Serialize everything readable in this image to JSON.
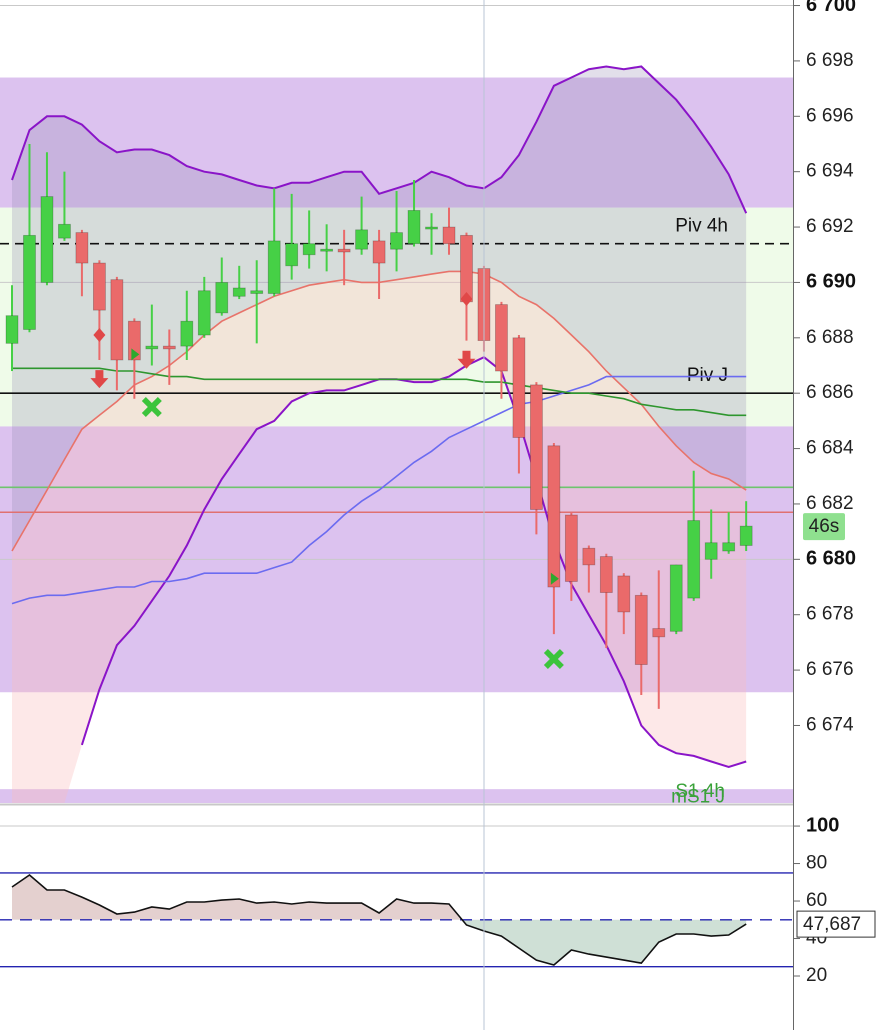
{
  "chart_data": [
    {
      "type": "candlestick",
      "open": [
        6687.8,
        6688.3,
        6690.0,
        6691.6,
        6691.8,
        6690.7,
        6690.1,
        6688.6,
        6687.6,
        6687.7,
        6687.7,
        6688.1,
        6688.9,
        6689.5,
        6689.6,
        6689.6,
        6690.6,
        6691.0,
        6691.2,
        6691.2,
        6691.2,
        6691.5,
        6691.2,
        6691.4,
        6692.0,
        6692.0,
        6691.7,
        6690.5,
        6689.2,
        6688.0,
        6686.3,
        6684.1,
        6681.6,
        6680.4,
        6680.1,
        6679.4,
        6678.7,
        6677.5,
        6677.4,
        6678.6,
        6680.0,
        6680.3,
        6680.5
      ],
      "high": [
        6689.9,
        6695.0,
        6694.7,
        6694.0,
        6691.9,
        6690.8,
        6690.2,
        6688.7,
        6689.2,
        6688.3,
        6689.7,
        6690.2,
        6690.9,
        6690.6,
        6690.8,
        6693.4,
        6693.2,
        6692.6,
        6692.1,
        6691.9,
        6693.1,
        6691.9,
        6693.3,
        6693.7,
        6692.5,
        6692.7,
        6691.8,
        6690.6,
        6689.3,
        6688.1,
        6686.4,
        6684.2,
        6681.7,
        6680.5,
        6680.2,
        6679.5,
        6678.8,
        6679.6,
        6679.8,
        6683.2,
        6681.8,
        6681.7,
        6682.1
      ],
      "low": [
        6686.8,
        6688.2,
        6689.9,
        6691.5,
        6689.5,
        6687.2,
        6686.1,
        6685.8,
        6687.0,
        6686.3,
        6687.2,
        6688.0,
        6688.8,
        6689.4,
        6687.8,
        6689.5,
        6690.1,
        6690.5,
        6690.4,
        6689.9,
        6691.0,
        6689.4,
        6690.4,
        6691.3,
        6691.0,
        6691.0,
        6687.9,
        6687.5,
        6685.8,
        6683.1,
        6680.9,
        6677.3,
        6678.5,
        6678.8,
        6676.8,
        6677.3,
        6675.1,
        6674.6,
        6677.3,
        6678.5,
        6679.3,
        6680.2,
        6680.3
      ],
      "close": [
        6688.8,
        6691.7,
        6693.1,
        6692.1,
        6690.7,
        6689.0,
        6687.2,
        6687.2,
        6687.7,
        6687.6,
        6688.6,
        6689.7,
        6690.0,
        6689.8,
        6689.7,
        6691.5,
        6691.4,
        6691.4,
        6691.2,
        6691.1,
        6691.9,
        6690.7,
        6691.8,
        6692.6,
        6692.0,
        6691.4,
        6689.3,
        6687.9,
        6686.8,
        6684.4,
        6681.8,
        6679.0,
        6679.2,
        6679.8,
        6678.8,
        6678.1,
        6676.2,
        6677.2,
        6679.8,
        6681.4,
        6680.6,
        6680.6,
        6681.2
      ],
      "up_color": "#46d046",
      "down_color": "#ea6a6a",
      "ylim": [
        6671.2,
        6700.2
      ],
      "yticks": [
        {
          "value": 6674,
          "label": "6 674"
        },
        {
          "value": 6676,
          "label": "6 676"
        },
        {
          "value": 6678,
          "label": "6 678"
        },
        {
          "value": 6680,
          "label": "6 680"
        },
        {
          "value": 6682,
          "label": "6 682"
        },
        {
          "value": 6684,
          "label": "6 684"
        },
        {
          "value": 6686,
          "label": "6 686"
        },
        {
          "value": 6688,
          "label": "6 688"
        },
        {
          "value": 6690,
          "label": "6 690"
        },
        {
          "value": 6692,
          "label": "6 692"
        },
        {
          "value": 6694,
          "label": "6 694"
        },
        {
          "value": 6696,
          "label": "6 696"
        },
        {
          "value": 6698,
          "label": "6 698"
        },
        {
          "value": 6700,
          "label": "6 700"
        }
      ],
      "major_tick_every": 10,
      "zones": [
        {
          "from": 6692.7,
          "to": 6697.4,
          "color": "#dcc2ef"
        },
        {
          "from": 6684.8,
          "to": 6692.7,
          "color": "#effbe9"
        },
        {
          "from": 6675.2,
          "to": 6684.8,
          "color": "#dcc2ef"
        },
        {
          "from": 6671.2,
          "to": 6671.7,
          "color": "#dcc2ef"
        }
      ],
      "lines": [
        {
          "color": "#8a14c8",
          "values": [
            6693.7,
            6695.5,
            6696.0,
            6696.0,
            6695.7,
            6695.1,
            6694.7,
            6694.8,
            6694.8,
            6694.6,
            6694.2,
            6694.0,
            6693.9,
            6693.7,
            6693.5,
            6693.4,
            6693.6,
            6693.6,
            6693.8,
            6694.0,
            6694.0,
            6693.2,
            6693.4,
            6693.6,
            6694.0,
            6693.8,
            6693.5,
            6693.4,
            6693.8,
            6694.6,
            6695.8,
            6697.1,
            6697.4,
            6697.7,
            6697.8,
            6697.7,
            6697.8,
            6697.2,
            6696.6,
            6695.8,
            6694.9,
            6693.9,
            6692.5
          ]
        },
        {
          "color": "#e8736a",
          "values": [
            6680.3,
            6681.4,
            6682.5,
            6683.6,
            6684.7,
            6685.2,
            6685.7,
            6686.3,
            6686.6,
            6687.0,
            6687.5,
            6688.1,
            6688.6,
            6688.9,
            6689.2,
            6689.5,
            6689.7,
            6689.9,
            6690.0,
            6690.1,
            6690.0,
            6690.0,
            6690.1,
            6690.2,
            6690.3,
            6690.4,
            6690.4,
            6690.3,
            6690.0,
            6689.5,
            6689.2,
            6688.7,
            6688.1,
            6687.5,
            6686.8,
            6686.2,
            6685.6,
            6684.8,
            6684.1,
            6683.5,
            6683.1,
            6682.9,
            6682.5
          ]
        },
        {
          "color": "#8a14c8",
          "values": [
            null,
            null,
            null,
            null,
            6673.3,
            6675.3,
            6676.9,
            6677.6,
            6678.5,
            6679.4,
            6680.5,
            6681.8,
            6682.9,
            6683.8,
            6684.7,
            6685.0,
            6685.7,
            6686.0,
            6686.1,
            6686.1,
            6686.3,
            6686.5,
            6686.5,
            6686.4,
            6686.4,
            6686.6,
            6687.0,
            6687.3,
            6686.8,
            6685.0,
            6682.9,
            6680.7,
            6679.1,
            6678.0,
            6676.9,
            6675.6,
            6674.0,
            6673.3,
            6673.0,
            6672.9,
            6672.7,
            6672.5,
            6672.7
          ]
        },
        {
          "color": "#6b6bf0",
          "values": [
            6678.4,
            6678.6,
            6678.7,
            6678.7,
            6678.8,
            6678.9,
            6679.0,
            6679.0,
            6679.2,
            6679.2,
            6679.3,
            6679.5,
            6679.5,
            6679.5,
            6679.5,
            6679.7,
            6679.9,
            6680.5,
            6681.0,
            6681.6,
            6682.1,
            6682.5,
            6683.0,
            6683.5,
            6683.9,
            6684.4,
            6684.7,
            6685.0,
            6685.3,
            6685.6,
            6685.7,
            6685.9,
            6686.1,
            6686.3,
            6686.6,
            6686.6,
            6686.6,
            6686.6,
            6686.6,
            6686.6,
            6686.6,
            6686.6,
            6686.6
          ]
        },
        {
          "color": "#2e962e",
          "values": [
            6686.9,
            6686.9,
            6686.9,
            6686.9,
            6686.9,
            6686.9,
            6686.8,
            6686.8,
            6686.7,
            6686.6,
            6686.6,
            6686.5,
            6686.5,
            6686.5,
            6686.5,
            6686.5,
            6686.5,
            6686.5,
            6686.5,
            6686.5,
            6686.5,
            6686.5,
            6686.5,
            6686.5,
            6686.5,
            6686.5,
            6686.5,
            6686.4,
            6686.4,
            6686.3,
            6686.2,
            6686.1,
            6686.0,
            6686.0,
            6685.9,
            6685.8,
            6685.6,
            6685.5,
            6685.4,
            6685.4,
            6685.3,
            6685.2,
            6685.2
          ]
        }
      ],
      "levels": [
        {
          "value": 6691.4,
          "color": "#111111",
          "dash": true,
          "label": "Piv 4h"
        },
        {
          "value": 6686.0,
          "color": "#111111",
          "dash": false,
          "label": "Piv J"
        },
        {
          "value": 6682.6,
          "color": "#6ec46e",
          "dash": false
        },
        {
          "value": 6681.7,
          "color": "#e07070",
          "dash": false
        }
      ],
      "annotations": [
        {
          "text": "S1 4h",
          "value": 6671.6,
          "color": "#3aa23a"
        },
        {
          "text": "mS1 J",
          "value": 6671.4,
          "color": "#3aa23a"
        }
      ],
      "markers": [
        {
          "shape": "arrow-down",
          "index": 5,
          "value": 6686.4,
          "color": "#e04848"
        },
        {
          "shape": "arrow-down",
          "index": 26,
          "value": 6687.1,
          "color": "#e04848"
        },
        {
          "shape": "diamond",
          "index": 5,
          "value": 6688.1,
          "color": "#e04848"
        },
        {
          "shape": "diamond",
          "index": 26,
          "value": 6689.4,
          "color": "#e04848"
        },
        {
          "shape": "triangle",
          "index": 7,
          "value": 6687.4,
          "color": "#2ea82e"
        },
        {
          "shape": "triangle",
          "index": 31,
          "value": 6679.3,
          "color": "#2ea82e"
        },
        {
          "shape": "cross",
          "index": 8,
          "value": 6685.5,
          "color": "#3cc43c"
        },
        {
          "shape": "cross",
          "index": 31,
          "value": 6676.4,
          "color": "#3cc43c"
        }
      ],
      "countdown": "46s"
    },
    {
      "type": "line",
      "values": [
        67.5,
        73.9,
        65.9,
        65.9,
        62.1,
        57.9,
        53.1,
        54.1,
        56.8,
        55.7,
        59.5,
        59.5,
        60.5,
        61.1,
        58.9,
        59.5,
        58.4,
        59.5,
        58.9,
        58.9,
        58.9,
        53.6,
        61.1,
        58.9,
        58.9,
        58.4,
        47.2,
        44.0,
        41.3,
        34.9,
        28.5,
        25.9,
        33.9,
        31.7,
        30.1,
        28.5,
        26.9,
        38.1,
        42.4,
        42.4,
        41.3,
        41.9,
        47.687
      ],
      "value_labels": [
        null,
        null,
        null,
        null,
        null,
        null,
        null,
        null,
        null,
        null,
        null,
        null,
        null,
        null,
        null,
        null,
        null,
        null,
        null,
        null,
        null,
        null,
        null,
        null,
        null,
        null,
        null,
        null,
        null,
        null,
        null,
        null,
        null,
        null,
        null,
        null,
        null,
        null,
        null,
        null,
        null,
        null,
        "47,687"
      ],
      "color": "#111111",
      "ylim": [
        -8.8,
        110.7
      ],
      "yticks": [
        20,
        40,
        60,
        80,
        100
      ],
      "major_tick_every": 100,
      "levels": [
        {
          "value": 75,
          "dash": false
        },
        {
          "value": 50,
          "dash": true
        },
        {
          "value": 25,
          "dash": false
        }
      ],
      "level_color": "#2424b0",
      "fill_base": 50,
      "fill_above": "#e4d0cf",
      "fill_below": "#cfe0d6"
    }
  ]
}
